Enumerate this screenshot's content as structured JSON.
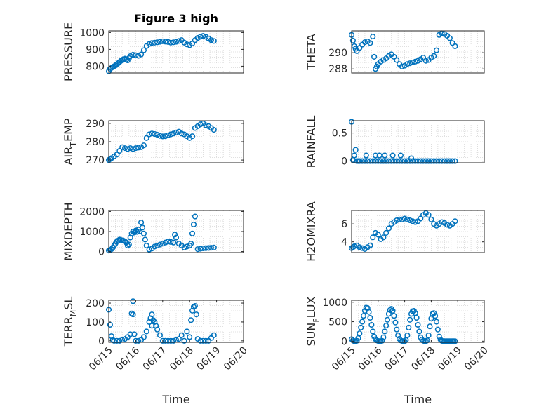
{
  "chart_data": [
    {
      "type": "scatter",
      "title": "Figure 3 high",
      "ylabel": "PRESSURE",
      "ylabel_parts": [
        "PRESSURE"
      ],
      "xlabel": "",
      "ylim": [
        760,
        1010
      ],
      "yticks": [
        800,
        900,
        1000
      ],
      "xlim": [
        0,
        5
      ],
      "xticks": [],
      "xtick_labels": [],
      "grid": true,
      "series": [
        {
          "x": [
            0,
            0.05,
            0.1,
            0.15,
            0.2,
            0.25,
            0.3,
            0.35,
            0.4,
            0.45,
            0.5,
            0.55,
            0.6,
            0.65,
            0.7,
            0.75,
            0.8,
            0.9,
            1.0,
            1.1,
            1.2,
            1.3,
            1.4,
            1.5,
            1.6,
            1.7,
            1.8,
            1.9,
            2.0,
            2.1,
            2.2,
            2.3,
            2.4,
            2.5,
            2.6,
            2.7,
            2.8,
            2.9,
            3.0,
            3.1,
            3.2,
            3.3,
            3.4,
            3.5,
            3.6,
            3.7,
            3.8,
            3.9
          ],
          "y": [
            770,
            785,
            790,
            795,
            800,
            805,
            812,
            818,
            825,
            832,
            838,
            842,
            845,
            840,
            835,
            848,
            860,
            868,
            865,
            862,
            870,
            895,
            920,
            932,
            938,
            940,
            942,
            945,
            948,
            946,
            944,
            940,
            942,
            945,
            950,
            955,
            940,
            930,
            925,
            935,
            955,
            968,
            975,
            980,
            975,
            965,
            955,
            950
          ]
        }
      ]
    },
    {
      "type": "scatter",
      "title": "",
      "ylabel": "THETA",
      "ylabel_parts": [
        "THETA"
      ],
      "xlabel": "",
      "ylim": [
        287.5,
        292.7
      ],
      "yticks": [
        288,
        290
      ],
      "xlim": [
        0,
        5
      ],
      "xticks": [],
      "xtick_labels": [],
      "grid": true,
      "series": [
        {
          "x": [
            0,
            0.05,
            0.1,
            0.15,
            0.2,
            0.3,
            0.4,
            0.5,
            0.6,
            0.7,
            0.8,
            0.85,
            0.9,
            0.95,
            1.0,
            1.1,
            1.2,
            1.3,
            1.4,
            1.5,
            1.6,
            1.7,
            1.8,
            1.9,
            2.0,
            2.1,
            2.2,
            2.3,
            2.4,
            2.5,
            2.6,
            2.7,
            2.8,
            2.9,
            3.0,
            3.1,
            3.2,
            3.3,
            3.4,
            3.5,
            3.6,
            3.7,
            3.8,
            3.9
          ],
          "y": [
            292.2,
            291.5,
            290.8,
            290.5,
            290.2,
            290.6,
            291.0,
            291.3,
            291.4,
            291.2,
            292.0,
            289.5,
            288.0,
            288.3,
            288.6,
            288.9,
            289.1,
            289.3,
            289.6,
            289.8,
            289.5,
            289.1,
            288.6,
            288.3,
            288.4,
            288.6,
            288.7,
            288.8,
            288.9,
            289.0,
            289.2,
            289.4,
            289.0,
            289.1,
            289.4,
            289.6,
            290.3,
            292.2,
            292.4,
            292.3,
            292.1,
            291.8,
            291.2,
            290.8
          ]
        }
      ]
    },
    {
      "type": "scatter",
      "title": "",
      "ylabel": "AIR_TEMP",
      "ylabel_parts": [
        "AIR",
        "T",
        "EMP"
      ],
      "xlabel": "",
      "ylim": [
        268.5,
        291.5
      ],
      "yticks": [
        270,
        280,
        290
      ],
      "xlim": [
        0,
        5
      ],
      "xticks": [],
      "xtick_labels": [],
      "grid": true,
      "series": [
        {
          "x": [
            0,
            0.05,
            0.1,
            0.2,
            0.3,
            0.4,
            0.5,
            0.6,
            0.7,
            0.8,
            0.9,
            1.0,
            1.1,
            1.2,
            1.3,
            1.4,
            1.5,
            1.6,
            1.7,
            1.8,
            1.9,
            2.0,
            2.1,
            2.2,
            2.3,
            2.4,
            2.5,
            2.6,
            2.7,
            2.8,
            2.9,
            3.0,
            3.1,
            3.2,
            3.3,
            3.4,
            3.5,
            3.6,
            3.7,
            3.8,
            3.9
          ],
          "y": [
            270,
            270.5,
            271,
            272,
            273,
            275,
            277,
            276.5,
            276,
            276.5,
            276,
            276.5,
            276.8,
            277,
            278,
            282,
            284,
            284.5,
            284.2,
            283.8,
            283.2,
            282.9,
            283.0,
            283.5,
            284.0,
            284.5,
            285.0,
            285.5,
            284.5,
            284.0,
            283.0,
            282.0,
            283.0,
            287.5,
            288.5,
            289.5,
            290.0,
            289.0,
            288.5,
            287.5,
            286.5
          ]
        }
      ]
    },
    {
      "type": "scatter",
      "title": "",
      "ylabel": "RAINFALL",
      "ylabel_parts": [
        "RAINFALL"
      ],
      "xlabel": "",
      "ylim": [
        -0.03,
        0.72
      ],
      "yticks": [
        0,
        0.5
      ],
      "xlim": [
        0,
        5
      ],
      "xticks": [],
      "xtick_labels": [],
      "grid": true,
      "series": [
        {
          "x": [
            0,
            0.05,
            0.1,
            0.15,
            0.2,
            0.25,
            0.3,
            0.4,
            0.5,
            0.6,
            0.7,
            0.8,
            0.9,
            1.0,
            1.1,
            1.2,
            1.3,
            1.4,
            1.5,
            1.6,
            1.7,
            1.8,
            1.9,
            2.0,
            2.1,
            2.2,
            2.3,
            2.4,
            2.5,
            2.6,
            2.7,
            2.8,
            2.9,
            3.0,
            3.1,
            3.2,
            3.3,
            3.4,
            3.5,
            3.6,
            3.7,
            3.8,
            3.9,
            0.55,
            0.9,
            1.05,
            1.25,
            1.55,
            1.85,
            2.25
          ],
          "y": [
            0.7,
            0.02,
            0.1,
            0.2,
            0,
            0,
            0,
            0,
            0,
            0,
            0,
            0,
            0,
            0,
            0,
            0,
            0,
            0,
            0,
            0,
            0,
            0,
            0,
            0,
            0,
            0,
            0,
            0,
            0,
            0,
            0,
            0,
            0,
            0,
            0,
            0,
            0,
            0,
            0,
            0,
            0,
            0,
            0,
            0.1,
            0.1,
            0.1,
            0.1,
            0.1,
            0.1,
            0.05
          ]
        }
      ]
    },
    {
      "type": "scatter",
      "title": "",
      "ylabel": "MIXDEPTH",
      "ylabel_parts": [
        "MIXDEPTH"
      ],
      "xlabel": "",
      "ylim": [
        -50,
        2050
      ],
      "yticks": [
        0,
        1000,
        2000
      ],
      "xlim": [
        0,
        5
      ],
      "xticks": [],
      "xtick_labels": [],
      "grid": true,
      "series": [
        {
          "x": [
            0,
            0.05,
            0.1,
            0.15,
            0.2,
            0.25,
            0.3,
            0.35,
            0.4,
            0.45,
            0.5,
            0.55,
            0.6,
            0.65,
            0.7,
            0.75,
            0.8,
            0.85,
            0.9,
            0.95,
            1.0,
            1.05,
            1.1,
            1.15,
            1.2,
            1.25,
            1.3,
            1.35,
            1.4,
            1.5,
            1.6,
            1.7,
            1.8,
            1.9,
            2.0,
            2.1,
            2.2,
            2.3,
            2.4,
            2.45,
            2.5,
            2.6,
            2.7,
            2.8,
            2.9,
            3.0,
            3.05,
            3.1,
            3.15,
            3.2,
            3.3,
            3.4,
            3.5,
            3.6,
            3.7,
            3.8,
            3.9
          ],
          "y": [
            50,
            80,
            120,
            200,
            300,
            400,
            500,
            550,
            600,
            580,
            560,
            540,
            500,
            450,
            300,
            350,
            700,
            900,
            1000,
            950,
            1050,
            980,
            1100,
            1000,
            1450,
            1200,
            900,
            600,
            300,
            100,
            150,
            250,
            300,
            350,
            400,
            450,
            500,
            480,
            450,
            850,
            700,
            400,
            300,
            200,
            250,
            300,
            400,
            900,
            1350,
            1750,
            120,
            140,
            160,
            170,
            180,
            190,
            200
          ]
        }
      ]
    },
    {
      "type": "scatter",
      "title": "",
      "ylabel": "H2OMIXRA",
      "ylabel_parts": [
        "H2OMIXRA"
      ],
      "xlabel": "",
      "ylim": [
        2.8,
        7.5
      ],
      "yticks": [
        4,
        6
      ],
      "xlim": [
        0,
        5
      ],
      "xticks": [],
      "xtick_labels": [],
      "grid": true,
      "series": [
        {
          "x": [
            0,
            0.05,
            0.1,
            0.2,
            0.3,
            0.4,
            0.5,
            0.6,
            0.7,
            0.8,
            0.9,
            1.0,
            1.1,
            1.2,
            1.3,
            1.4,
            1.5,
            1.6,
            1.7,
            1.8,
            1.9,
            2.0,
            2.1,
            2.2,
            2.3,
            2.4,
            2.5,
            2.6,
            2.7,
            2.8,
            2.9,
            3.0,
            3.1,
            3.2,
            3.3,
            3.4,
            3.5,
            3.6,
            3.7,
            3.8,
            3.9
          ],
          "y": [
            3.3,
            3.4,
            3.5,
            3.6,
            3.4,
            3.3,
            3.2,
            3.4,
            3.6,
            4.5,
            5.0,
            4.8,
            4.3,
            4.5,
            5.0,
            5.5,
            6.0,
            6.2,
            6.4,
            6.5,
            6.5,
            6.6,
            6.5,
            6.4,
            6.3,
            6.2,
            6.3,
            6.6,
            7.0,
            7.2,
            7.0,
            6.5,
            6.0,
            5.8,
            6.0,
            6.2,
            6.1,
            5.9,
            5.8,
            6.0,
            6.3
          ]
        }
      ]
    },
    {
      "type": "scatter",
      "title": "",
      "ylabel": "TERR_MSL",
      "ylabel_parts": [
        "TERR",
        "M",
        "SL"
      ],
      "xlabel": "Time",
      "ylim": [
        -8,
        215
      ],
      "yticks": [
        0,
        100,
        200
      ],
      "xlim": [
        0,
        5
      ],
      "xticks": [
        0,
        1,
        2,
        3,
        4,
        5
      ],
      "xtick_labels": [
        "06/15",
        "06/16",
        "06/17",
        "06/18",
        "06/19",
        "06/20"
      ],
      "grid": true,
      "series": [
        {
          "x": [
            0,
            0.05,
            0.1,
            0.15,
            0.2,
            0.3,
            0.4,
            0.5,
            0.6,
            0.7,
            0.8,
            0.85,
            0.9,
            0.95,
            1.0,
            1.1,
            1.2,
            1.3,
            1.4,
            1.5,
            1.55,
            1.6,
            1.65,
            1.7,
            1.75,
            1.8,
            1.9,
            2.0,
            2.1,
            2.2,
            2.3,
            2.4,
            2.5,
            2.6,
            2.7,
            2.8,
            2.9,
            3.0,
            3.05,
            3.1,
            3.15,
            3.2,
            3.25,
            3.3,
            3.4,
            3.5,
            3.6,
            3.7,
            3.8,
            3.9,
            0.9,
            1.6
          ],
          "y": [
            165,
            85,
            25,
            5,
            0,
            0,
            0,
            5,
            10,
            20,
            35,
            145,
            210,
            35,
            0,
            0,
            5,
            20,
            50,
            100,
            120,
            140,
            110,
            100,
            80,
            60,
            30,
            0,
            0,
            0,
            0,
            0,
            5,
            10,
            30,
            0,
            50,
            20,
            110,
            160,
            180,
            185,
            140,
            10,
            0,
            0,
            0,
            0,
            15,
            30,
            140,
            80
          ]
        }
      ]
    },
    {
      "type": "scatter",
      "title": "",
      "ylabel": "SUN_FLUX",
      "ylabel_parts": [
        "SUN",
        "F",
        "LUX"
      ],
      "xlabel": "Time",
      "ylim": [
        -30,
        1050
      ],
      "yticks": [
        0,
        500,
        1000
      ],
      "xlim": [
        0,
        5
      ],
      "xticks": [
        0,
        1,
        2,
        3,
        4,
        5
      ],
      "xtick_labels": [
        "06/15",
        "06/16",
        "06/17",
        "06/18",
        "06/19",
        "06/20"
      ],
      "grid": true,
      "series": [
        {
          "x": [
            0,
            0.05,
            0.1,
            0.15,
            0.2,
            0.25,
            0.3,
            0.35,
            0.4,
            0.45,
            0.5,
            0.55,
            0.6,
            0.65,
            0.7,
            0.75,
            0.8,
            0.85,
            0.9,
            0.95,
            1.0,
            1.05,
            1.1,
            1.15,
            1.2,
            1.25,
            1.3,
            1.35,
            1.4,
            1.45,
            1.5,
            1.55,
            1.6,
            1.65,
            1.7,
            1.75,
            1.8,
            1.85,
            1.9,
            1.95,
            2.0,
            2.05,
            2.1,
            2.15,
            2.2,
            2.25,
            2.3,
            2.35,
            2.4,
            2.45,
            2.5,
            2.55,
            2.6,
            2.65,
            2.7,
            2.75,
            2.8,
            2.85,
            2.9,
            2.95,
            3.0,
            3.05,
            3.1,
            3.15,
            3.2,
            3.25,
            3.3,
            3.35,
            3.4,
            3.45,
            3.5,
            3.55,
            3.6,
            3.65,
            3.7,
            3.75,
            3.8,
            3.85,
            3.9
          ],
          "y": [
            50,
            20,
            0,
            0,
            10,
            80,
            200,
            350,
            500,
            650,
            780,
            860,
            850,
            750,
            600,
            420,
            250,
            120,
            50,
            20,
            5,
            0,
            0,
            10,
            100,
            250,
            400,
            550,
            700,
            800,
            830,
            780,
            650,
            480,
            300,
            150,
            60,
            20,
            5,
            0,
            0,
            30,
            150,
            350,
            550,
            700,
            770,
            780,
            720,
            600,
            420,
            250,
            100,
            40,
            10,
            0,
            0,
            20,
            150,
            380,
            580,
            700,
            720,
            650,
            500,
            300,
            120,
            40,
            10,
            0,
            0,
            0,
            0,
            0,
            0,
            0,
            0,
            0,
            0
          ]
        }
      ]
    }
  ],
  "colors": {
    "marker": "#0072BD",
    "axis": "#262626",
    "grid": "#d6d6d6",
    "background": "#ffffff"
  }
}
